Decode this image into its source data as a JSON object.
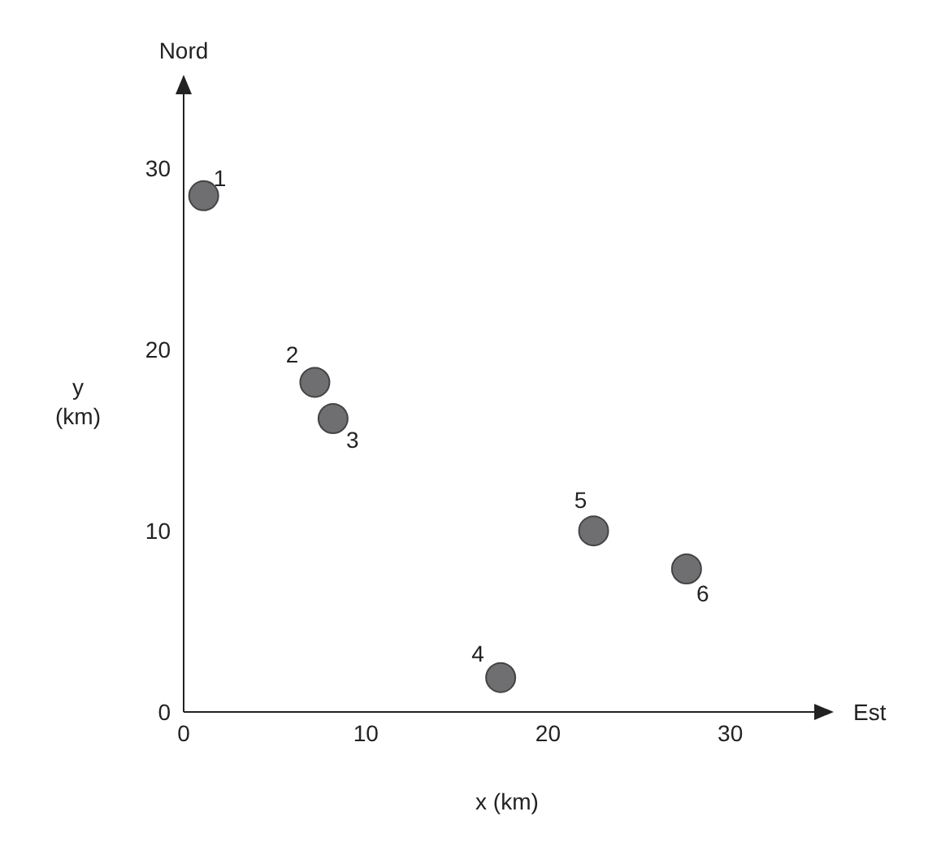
{
  "chart_data": {
    "type": "scatter",
    "xlabel": "x (km)",
    "ylabel": "y (km)",
    "x": [
      1.1,
      7.2,
      8.2,
      17.4,
      22.5,
      27.6
    ],
    "values": [
      28.5,
      18.2,
      16.2,
      1.9,
      10.0,
      7.9
    ],
    "color": "#6f6f72",
    "marker": "circle",
    "xlim": [
      0,
      35.5
    ],
    "ylim": [
      0,
      35
    ],
    "xticks": [
      0,
      10,
      20,
      30
    ],
    "yticks": [
      0,
      10,
      20,
      30
    ],
    "grid": false,
    "legend": false,
    "annotations": [
      "Nord",
      "Est",
      {
        "text": "1",
        "x": 1.1,
        "y": 28.5
      },
      {
        "text": "2",
        "x": 7.2,
        "y": 18.2
      },
      {
        "text": "3",
        "x": 8.2,
        "y": 16.2
      },
      {
        "text": "4",
        "x": 17.4,
        "y": 1.9
      },
      {
        "text": "5",
        "x": 22.5,
        "y": 10.0
      },
      {
        "text": "6",
        "x": 27.6,
        "y": 7.9
      }
    ]
  }
}
